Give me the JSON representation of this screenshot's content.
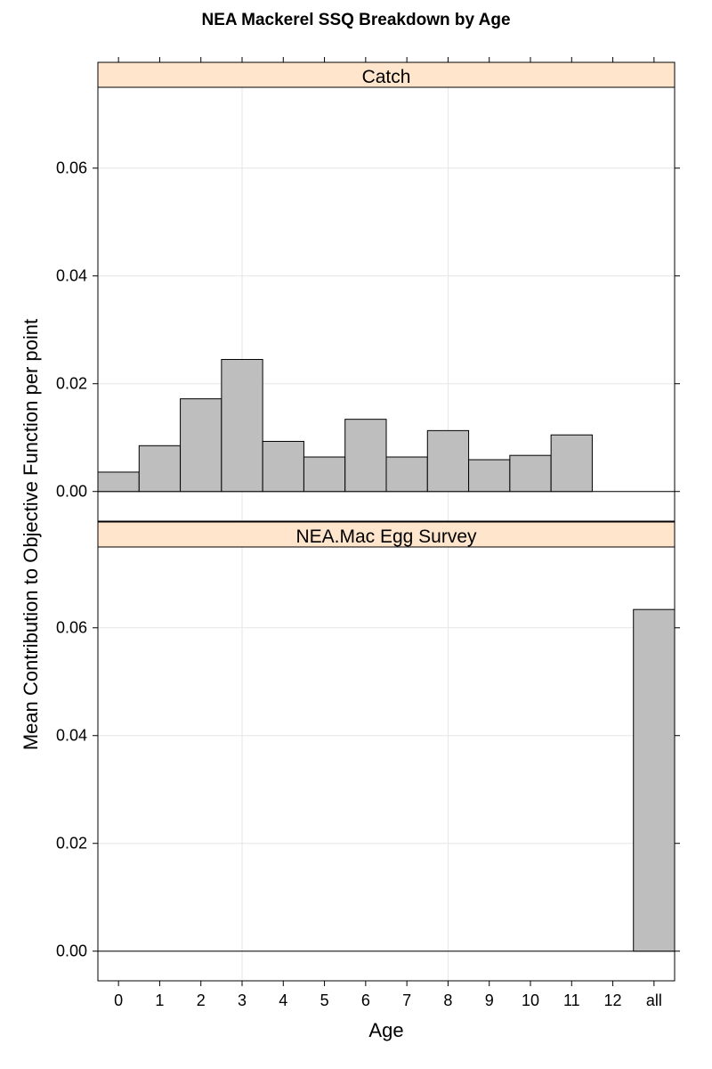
{
  "chart_data": {
    "type": "bar",
    "title": "NEA Mackerel SSQ Breakdown by Age",
    "xlabel": "Age",
    "ylabel": "Mean Contribution to Objective Function per point",
    "categories": [
      "0",
      "1",
      "2",
      "3",
      "4",
      "5",
      "6",
      "7",
      "8",
      "9",
      "10",
      "11",
      "12",
      "all"
    ],
    "ylim": [
      -0.0055,
      0.075
    ],
    "yticks": [
      "0.00",
      "0.02",
      "0.04",
      "0.06"
    ],
    "grid": true,
    "colors": {
      "bar_fill": "#bebebe",
      "strip_fill": "#ffe5cc",
      "grid": "#e6e6e6"
    },
    "panels": [
      {
        "strip": "Catch",
        "values": [
          0.0036,
          0.0085,
          0.0172,
          0.0245,
          0.0093,
          0.0064,
          0.0134,
          0.0064,
          0.0113,
          0.0059,
          0.0067,
          0.0105,
          null,
          null
        ]
      },
      {
        "strip": "NEA.Mac Egg Survey",
        "values": [
          null,
          null,
          null,
          null,
          null,
          null,
          null,
          null,
          null,
          null,
          null,
          null,
          null,
          0.0634
        ]
      }
    ]
  }
}
